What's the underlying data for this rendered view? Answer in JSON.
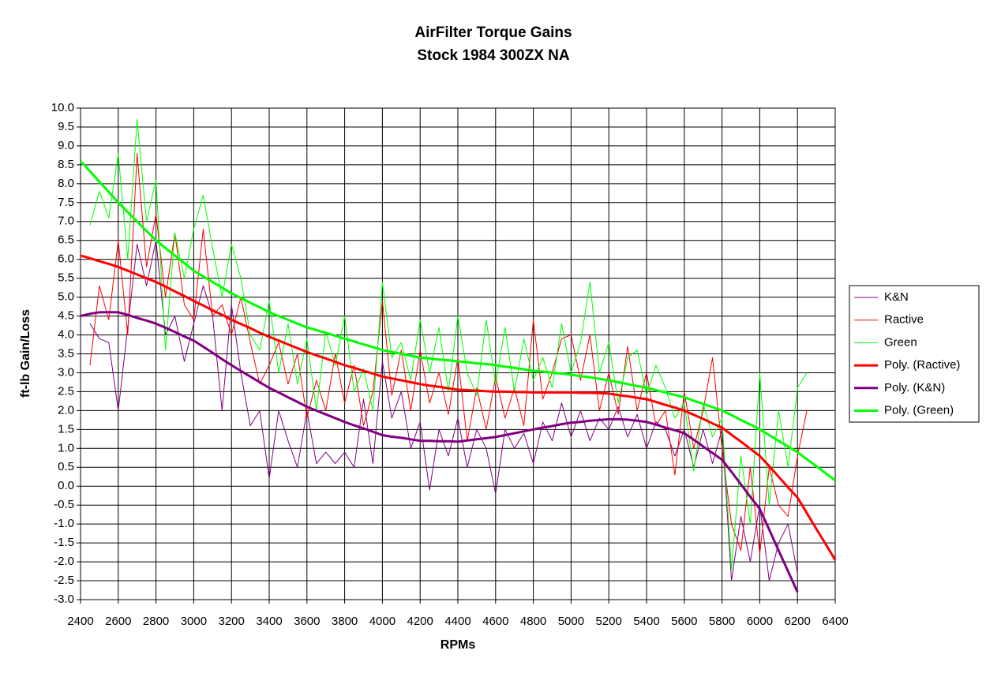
{
  "chart_data": {
    "type": "line",
    "title": "AirFilter Torque Gains",
    "subtitle": "Stock 1984 300ZX NA",
    "x_label": "RPMs",
    "y_label": "ft-lb Gain/Loss",
    "grid": true,
    "legend": "right",
    "xlim": [
      2400,
      6400
    ],
    "xticks": [
      2400,
      2600,
      2800,
      3000,
      3200,
      3400,
      3600,
      3800,
      4000,
      4200,
      4400,
      4600,
      4800,
      5000,
      5200,
      5400,
      5600,
      5800,
      6000,
      6200,
      6400
    ],
    "ylim": [
      -3,
      10
    ],
    "yticks": [
      {
        "value": -3,
        "label": "-3.0"
      },
      {
        "value": -2.5,
        "label": "-2.5"
      },
      {
        "value": -2,
        "label": "-2.0"
      },
      {
        "value": -1.5,
        "label": "-1.5"
      },
      {
        "value": -1,
        "label": "-1.0"
      },
      {
        "value": -0.5,
        "label": "-0.5"
      },
      {
        "value": 0,
        "label": "0.0"
      },
      {
        "value": 0.5,
        "label": "0.5"
      },
      {
        "value": 1,
        "label": "1.0"
      },
      {
        "value": 1.5,
        "label": "1.5"
      },
      {
        "value": 2,
        "label": "2.0"
      },
      {
        "value": 2.5,
        "label": "2.5"
      },
      {
        "value": 3,
        "label": "3.0"
      },
      {
        "value": 3.5,
        "label": "3.5"
      },
      {
        "value": 4,
        "label": "4.0"
      },
      {
        "value": 4.5,
        "label": "4.5"
      },
      {
        "value": 5,
        "label": "5.0"
      },
      {
        "value": 5.5,
        "label": "5.5"
      },
      {
        "value": 6,
        "label": "6.0"
      },
      {
        "value": 6.5,
        "label": "6.5"
      },
      {
        "value": 7,
        "label": "7.0"
      },
      {
        "value": 7.5,
        "label": "7.5"
      },
      {
        "value": 8,
        "label": "8.0"
      },
      {
        "value": 8.5,
        "label": "8.5"
      },
      {
        "value": 9,
        "label": "9.0"
      },
      {
        "value": 9.5,
        "label": "9.5"
      },
      {
        "value": 10,
        "label": "10.0"
      }
    ],
    "x": [
      2400,
      2450,
      2500,
      2550,
      2600,
      2650,
      2700,
      2750,
      2800,
      2850,
      2900,
      2950,
      3000,
      3050,
      3100,
      3150,
      3200,
      3250,
      3300,
      3350,
      3400,
      3450,
      3500,
      3550,
      3600,
      3650,
      3700,
      3750,
      3800,
      3850,
      3900,
      3950,
      4000,
      4050,
      4100,
      4150,
      4200,
      4250,
      4300,
      4350,
      4400,
      4450,
      4500,
      4550,
      4600,
      4650,
      4700,
      4750,
      4800,
      4850,
      4900,
      4950,
      5000,
      5050,
      5100,
      5150,
      5200,
      5250,
      5300,
      5350,
      5400,
      5450,
      5500,
      5550,
      5600,
      5650,
      5700,
      5750,
      5800,
      5850,
      5900,
      5950,
      6000,
      6050,
      6100,
      6150,
      6200,
      6250,
      6300,
      6350,
      6400
    ],
    "series": [
      {
        "name": "K&N",
        "color": "#800080",
        "width": 1,
        "values": [
          null,
          4.3,
          3.9,
          3.8,
          2.0,
          4.2,
          6.4,
          5.3,
          6.5,
          4.0,
          4.5,
          3.3,
          4.3,
          5.3,
          4.5,
          2.0,
          4.8,
          3.0,
          1.6,
          2.0,
          0.2,
          2.0,
          1.2,
          0.5,
          2.0,
          0.6,
          0.9,
          0.6,
          0.9,
          0.5,
          2.3,
          0.6,
          3.3,
          1.8,
          2.5,
          1.0,
          1.7,
          -0.1,
          1.5,
          0.8,
          1.8,
          0.5,
          1.5,
          1.0,
          -0.2,
          1.5,
          1.0,
          1.4,
          0.6,
          1.7,
          1.2,
          2.2,
          1.3,
          2.0,
          1.2,
          1.8,
          1.5,
          2.1,
          1.3,
          1.9,
          1.0,
          1.7,
          1.5,
          0.8,
          1.5,
          0.5,
          1.5,
          0.6,
          1.5,
          -2.5,
          -0.8,
          -2.0,
          -0.5,
          -2.5,
          -1.5,
          -1.0,
          -2.3,
          null,
          null,
          null,
          null
        ]
      },
      {
        "name": "Ractive",
        "color": "#ff0000",
        "width": 1,
        "values": [
          null,
          3.2,
          5.3,
          4.4,
          6.5,
          4.0,
          8.8,
          5.8,
          7.2,
          5.0,
          6.7,
          4.8,
          4.4,
          6.8,
          4.5,
          4.8,
          4.0,
          5.0,
          3.8,
          2.7,
          3.2,
          3.8,
          2.7,
          3.5,
          1.8,
          2.8,
          2.0,
          3.5,
          2.2,
          3.2,
          1.6,
          2.5,
          4.9,
          2.4,
          3.6,
          2.0,
          3.6,
          2.2,
          3.0,
          1.9,
          3.4,
          1.2,
          2.6,
          1.5,
          2.9,
          1.8,
          2.6,
          1.6,
          4.4,
          2.3,
          3.0,
          3.9,
          4.0,
          2.8,
          4.0,
          2.0,
          3.0,
          1.9,
          3.7,
          2.0,
          3.0,
          1.6,
          2.0,
          0.3,
          2.5,
          1.0,
          2.0,
          3.4,
          1.0,
          -1.0,
          -1.7,
          0.5,
          -1.8,
          0.5,
          -0.5,
          -0.8,
          0.8,
          2.0,
          null,
          null,
          null
        ]
      },
      {
        "name": "Green",
        "color": "#00ff00",
        "width": 1,
        "values": [
          null,
          6.9,
          7.8,
          7.1,
          8.8,
          6.0,
          9.7,
          7.0,
          8.1,
          3.6,
          6.7,
          5.5,
          6.8,
          7.7,
          6.3,
          5.0,
          6.4,
          5.5,
          4.0,
          3.6,
          4.9,
          3.0,
          4.3,
          2.7,
          3.9,
          2.0,
          4.1,
          3.2,
          4.5,
          2.5,
          3.1,
          2.0,
          5.4,
          3.4,
          3.8,
          2.8,
          4.4,
          3.0,
          4.2,
          2.5,
          4.5,
          3.0,
          2.4,
          4.4,
          2.7,
          4.2,
          2.5,
          3.9,
          2.8,
          3.4,
          2.6,
          4.3,
          3.0,
          3.8,
          5.4,
          3.0,
          3.8,
          2.2,
          3.4,
          3.6,
          2.4,
          3.2,
          2.6,
          1.8,
          2.2,
          0.4,
          2.2,
          1.3,
          1.8,
          -2.2,
          0.8,
          -1.0,
          3.0,
          -0.5,
          2.0,
          0.5,
          2.6,
          3.0,
          null,
          null,
          null
        ]
      },
      {
        "name": "Poly. (Ractive)",
        "color": "#ff0000",
        "width": 3,
        "values": [
          6.1,
          6.03,
          5.95,
          5.88,
          5.8,
          5.7,
          5.6,
          5.5,
          5.4,
          5.28,
          5.15,
          5.03,
          4.9,
          4.78,
          4.65,
          4.53,
          4.4,
          4.29,
          4.18,
          4.06,
          3.95,
          3.85,
          3.75,
          3.65,
          3.55,
          3.46,
          3.38,
          3.29,
          3.2,
          3.13,
          3.05,
          2.98,
          2.9,
          2.85,
          2.8,
          2.75,
          2.7,
          2.66,
          2.63,
          2.59,
          2.55,
          2.54,
          2.53,
          2.51,
          2.5,
          2.5,
          2.49,
          2.49,
          2.48,
          2.48,
          2.48,
          2.48,
          2.48,
          2.47,
          2.47,
          2.46,
          2.45,
          2.41,
          2.38,
          2.34,
          2.3,
          2.23,
          2.15,
          2.08,
          2.0,
          1.89,
          1.78,
          1.66,
          1.55,
          1.36,
          1.18,
          0.99,
          0.8,
          0.53,
          0.25,
          -0.03,
          -0.3,
          -0.71,
          -1.13,
          -1.54,
          -1.95
        ]
      },
      {
        "name": "Poly. (K&N)",
        "color": "#800080",
        "width": 3,
        "values": [
          4.5,
          4.56,
          4.6,
          4.6,
          4.6,
          4.53,
          4.45,
          4.38,
          4.3,
          4.19,
          4.08,
          3.96,
          3.85,
          3.69,
          3.53,
          3.36,
          3.2,
          3.05,
          2.9,
          2.75,
          2.6,
          2.48,
          2.35,
          2.23,
          2.1,
          2.0,
          1.9,
          1.8,
          1.7,
          1.61,
          1.53,
          1.44,
          1.35,
          1.31,
          1.28,
          1.24,
          1.2,
          1.2,
          1.19,
          1.19,
          1.18,
          1.21,
          1.24,
          1.27,
          1.3,
          1.35,
          1.4,
          1.45,
          1.5,
          1.55,
          1.59,
          1.64,
          1.68,
          1.7,
          1.73,
          1.75,
          1.77,
          1.77,
          1.76,
          1.73,
          1.7,
          1.63,
          1.55,
          1.48,
          1.4,
          1.23,
          1.05,
          0.88,
          0.7,
          0.38,
          0.05,
          -0.28,
          -0.6,
          -1.15,
          -1.7,
          -2.25,
          -2.8,
          null,
          null,
          null,
          null
        ]
      },
      {
        "name": "Poly. (Green)",
        "color": "#00ff00",
        "width": 3,
        "values": [
          8.6,
          8.33,
          8.05,
          7.78,
          7.5,
          7.25,
          7.0,
          6.75,
          6.5,
          6.3,
          6.1,
          5.9,
          5.7,
          5.55,
          5.4,
          5.25,
          5.1,
          4.98,
          4.85,
          4.73,
          4.6,
          4.5,
          4.4,
          4.3,
          4.2,
          4.13,
          4.05,
          3.98,
          3.9,
          3.83,
          3.75,
          3.68,
          3.6,
          3.55,
          3.5,
          3.45,
          3.4,
          3.38,
          3.35,
          3.33,
          3.3,
          3.28,
          3.25,
          3.23,
          3.2,
          3.16,
          3.13,
          3.09,
          3.05,
          3.03,
          3.0,
          2.98,
          2.95,
          2.91,
          2.88,
          2.84,
          2.8,
          2.75,
          2.7,
          2.65,
          2.6,
          2.54,
          2.48,
          2.41,
          2.35,
          2.26,
          2.18,
          2.09,
          2.0,
          1.88,
          1.75,
          1.63,
          1.5,
          1.35,
          1.2,
          1.05,
          0.9,
          0.71,
          0.53,
          0.34,
          0.15
        ]
      }
    ]
  }
}
